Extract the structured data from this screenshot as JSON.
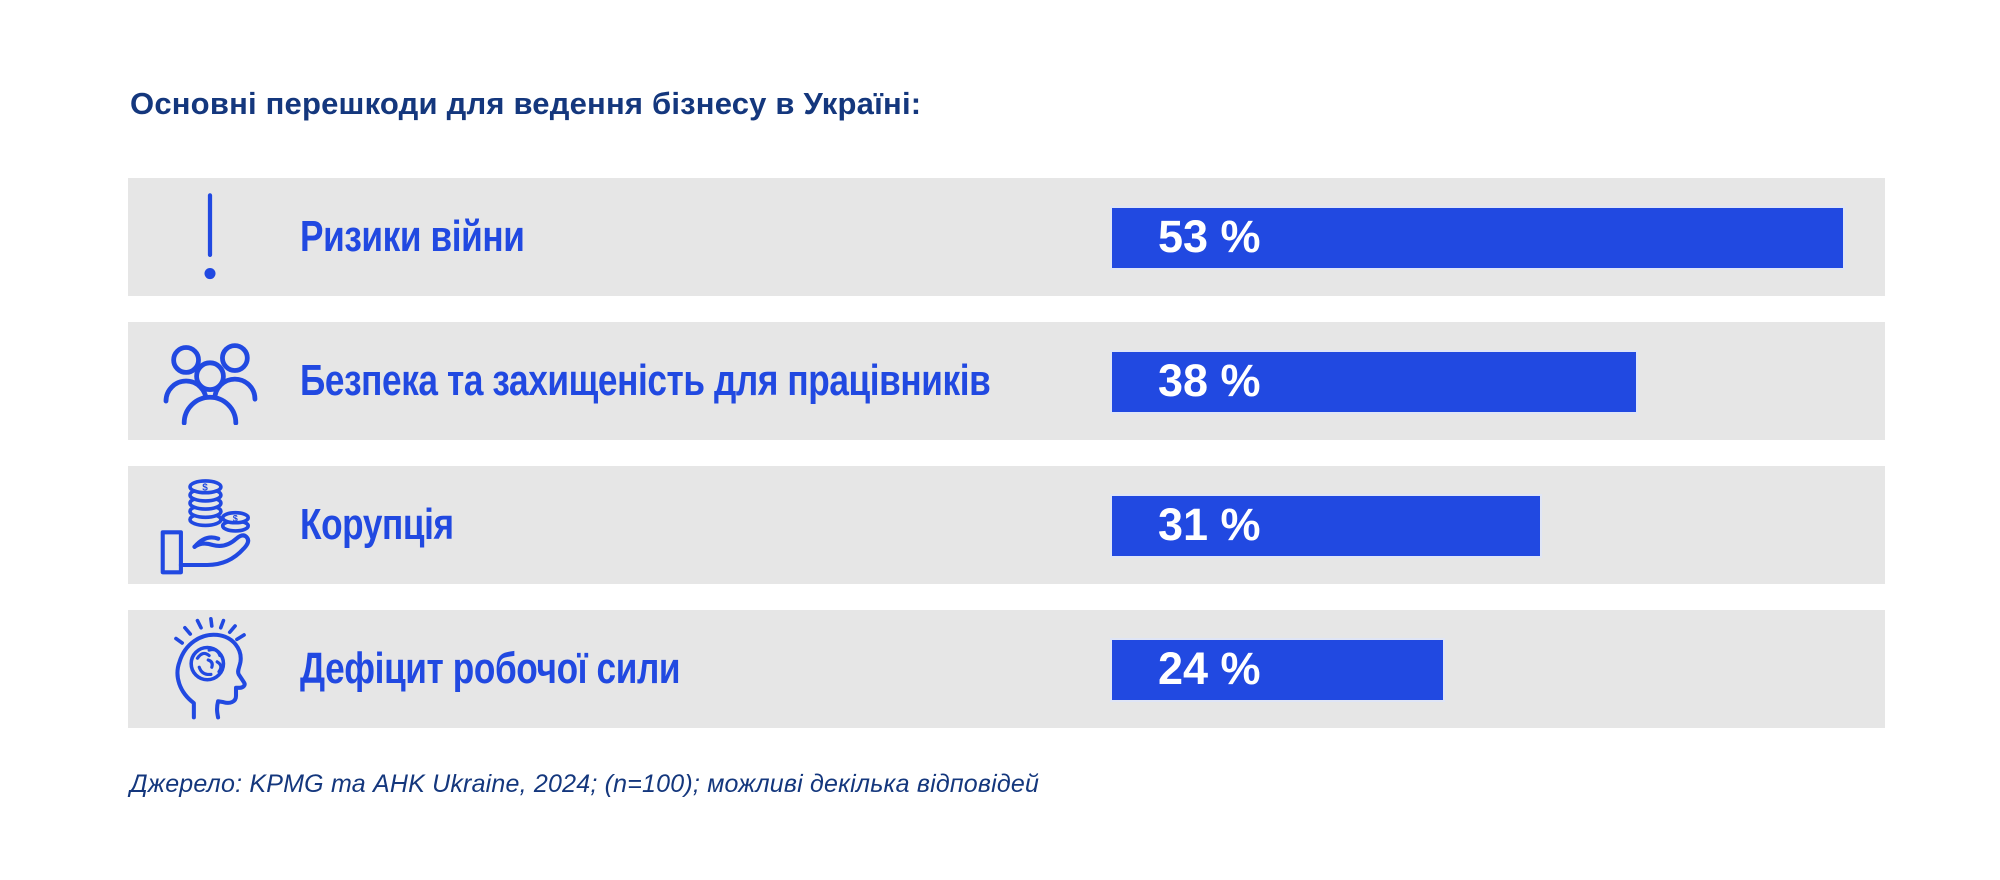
{
  "title": "Основні перешкоди для ведення бізнесу в Україні:",
  "source": "Джерело: KPMG та AHK Ukraine, 2024; (n=100); можливі декілька відповідей",
  "colors": {
    "accent": "#2149E1",
    "title": "#14377D",
    "row_bg": "#E6E6E6",
    "bar_text": "#FFFFFF",
    "page_bg": "#FFFFFF"
  },
  "chart_data": {
    "type": "bar",
    "orientation": "horizontal",
    "title": "Основні перешкоди для ведення бізнесу в Україні:",
    "categories": [
      "Ризики війни",
      "Безпека та захищеність для працівників",
      "Корупція",
      "Дефіцит робочої сили"
    ],
    "values": [
      53,
      38,
      31,
      24
    ],
    "value_labels": [
      "53 %",
      "38 %",
      "31 %",
      "24 %"
    ],
    "unit": "%",
    "icons": [
      "exclamation-icon",
      "people-group-icon",
      "hand-coins-icon",
      "head-brain-icon"
    ],
    "xlim": [
      0,
      56
    ],
    "grid": false,
    "legend": false,
    "source": "Джерело: KPMG та AHK Ukraine, 2024; (n=100); можливі декілька відповідей"
  }
}
